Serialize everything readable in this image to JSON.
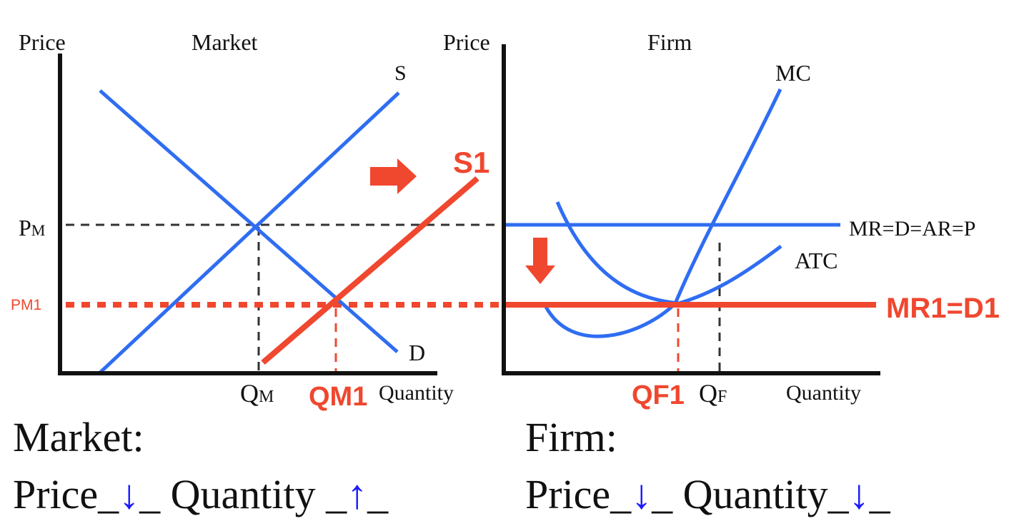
{
  "market": {
    "title": "Market",
    "y_axis_label": "Price",
    "x_axis_label": "Quantity",
    "curves": {
      "supply": "S",
      "demand": "D",
      "new_supply": "S1"
    },
    "ticks": {
      "pm": "P",
      "pm_sub": "M",
      "pm1": "PM1",
      "qm": "Q",
      "qm_sub": "M",
      "qm1": "QM1"
    }
  },
  "firm": {
    "title": "Firm",
    "y_axis_label": "Price",
    "x_axis_label": "Quantity",
    "curves": {
      "mc": "MC",
      "atc": "ATC",
      "mr": "MR=D=AR=P",
      "mr1": "MR1=D1"
    },
    "ticks": {
      "qf": "Q",
      "qf_sub": "F",
      "qf1": "QF1"
    }
  },
  "captions": {
    "market_heading": "Market:",
    "firm_heading": "Firm:",
    "market_line": {
      "price": "Price_",
      "price_dir": "↓",
      "sep": "_ Quantity _",
      "qty_dir": "↑",
      "end": "_"
    },
    "firm_line": {
      "price": "Price_",
      "price_dir": "↓",
      "sep": "_ Quantity_",
      "qty_dir": "↓",
      "end": "_"
    }
  },
  "colors": {
    "original": "#2f6df2",
    "shift": "#f0472f",
    "axis": "#111111",
    "guide": "#333333",
    "direction_arrow": "#1a1aff"
  }
}
